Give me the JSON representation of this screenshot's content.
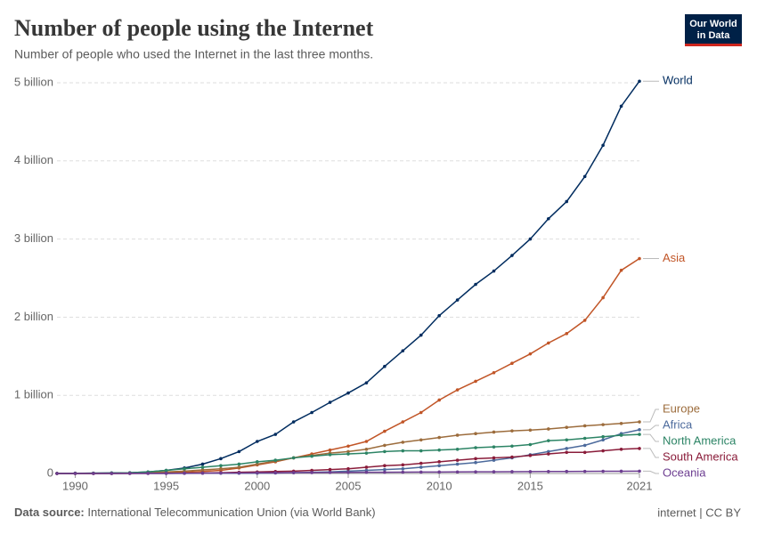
{
  "logo": [
    "Our World",
    "in Data"
  ],
  "chart_data": {
    "type": "line",
    "title": "Number of people using the Internet",
    "subtitle": "Number of people who used the Internet in the last three months.",
    "source_label": "Data source:",
    "source": "International Telecommunication Union (via World Bank)",
    "license": "internet | CC BY",
    "x": [
      1989,
      1990,
      1991,
      1992,
      1993,
      1994,
      1995,
      1996,
      1997,
      1998,
      1999,
      2000,
      2001,
      2002,
      2003,
      2004,
      2005,
      2006,
      2007,
      2008,
      2009,
      2010,
      2011,
      2012,
      2013,
      2014,
      2015,
      2016,
      2017,
      2018,
      2019,
      2020,
      2021
    ],
    "xlim": [
      1989,
      2021
    ],
    "xticks": [
      1990,
      1995,
      2000,
      2005,
      2010,
      2015,
      2021
    ],
    "ylim": [
      0,
      5
    ],
    "yticks": [
      0,
      {
        "value": 1,
        "label": "1 billion"
      },
      {
        "value": 2,
        "label": "2 billion"
      },
      {
        "value": 3,
        "label": "3 billion"
      },
      {
        "value": 4,
        "label": "4 billion"
      },
      {
        "value": 5,
        "label": "5 billion"
      }
    ],
    "grid": true,
    "series": [
      {
        "name": "World",
        "color": "#002c5f",
        "values": [
          0.001,
          0.003,
          0.004,
          0.007,
          0.01,
          0.02,
          0.04,
          0.07,
          0.12,
          0.19,
          0.28,
          0.41,
          0.5,
          0.66,
          0.78,
          0.91,
          1.03,
          1.16,
          1.37,
          1.57,
          1.77,
          2.02,
          2.22,
          2.42,
          2.59,
          2.79,
          3.0,
          3.26,
          3.48,
          3.8,
          4.2,
          4.7,
          5.02
        ]
      },
      {
        "name": "Asia",
        "color": "#c15527",
        "values": [
          0,
          0,
          0,
          0.001,
          0.002,
          0.004,
          0.008,
          0.015,
          0.025,
          0.04,
          0.07,
          0.11,
          0.15,
          0.2,
          0.25,
          0.3,
          0.35,
          0.41,
          0.54,
          0.66,
          0.78,
          0.94,
          1.07,
          1.18,
          1.29,
          1.41,
          1.53,
          1.67,
          1.79,
          1.96,
          2.25,
          2.6,
          2.75
        ]
      },
      {
        "name": "Europe",
        "color": "#9c6c3c",
        "values": [
          0,
          0.001,
          0.002,
          0.003,
          0.005,
          0.01,
          0.02,
          0.03,
          0.045,
          0.06,
          0.08,
          0.12,
          0.16,
          0.2,
          0.23,
          0.26,
          0.28,
          0.31,
          0.36,
          0.4,
          0.43,
          0.46,
          0.49,
          0.51,
          0.53,
          0.545,
          0.555,
          0.57,
          0.59,
          0.61,
          0.625,
          0.64,
          0.66
        ]
      },
      {
        "name": "Africa",
        "color": "#4c6a9c",
        "values": [
          0,
          0.001,
          0.001,
          0.001,
          0.001,
          0.002,
          0.002,
          0.002,
          0.003,
          0.003,
          0.003,
          0.004,
          0.006,
          0.01,
          0.015,
          0.02,
          0.03,
          0.04,
          0.05,
          0.06,
          0.08,
          0.1,
          0.12,
          0.14,
          0.17,
          0.2,
          0.24,
          0.28,
          0.32,
          0.36,
          0.43,
          0.51,
          0.56
        ]
      },
      {
        "name": "North America",
        "color": "#2c8465",
        "values": [
          0.001,
          0.002,
          0.004,
          0.006,
          0.01,
          0.02,
          0.04,
          0.06,
          0.08,
          0.1,
          0.12,
          0.15,
          0.17,
          0.2,
          0.22,
          0.24,
          0.25,
          0.26,
          0.28,
          0.29,
          0.29,
          0.3,
          0.31,
          0.33,
          0.34,
          0.35,
          0.37,
          0.42,
          0.43,
          0.45,
          0.47,
          0.49,
          0.5
        ]
      },
      {
        "name": "South America",
        "color": "#8a1c3a",
        "values": [
          0,
          0,
          0,
          0,
          0.001,
          0.001,
          0.002,
          0.004,
          0.006,
          0.01,
          0.015,
          0.02,
          0.025,
          0.03,
          0.04,
          0.05,
          0.06,
          0.08,
          0.1,
          0.11,
          0.13,
          0.15,
          0.17,
          0.19,
          0.2,
          0.21,
          0.23,
          0.25,
          0.27,
          0.27,
          0.29,
          0.31,
          0.32
        ]
      },
      {
        "name": "Oceania",
        "color": "#6d3e91",
        "values": [
          0,
          0,
          0,
          0,
          0.001,
          0.001,
          0.002,
          0.003,
          0.004,
          0.005,
          0.006,
          0.008,
          0.009,
          0.011,
          0.012,
          0.013,
          0.014,
          0.015,
          0.016,
          0.017,
          0.018,
          0.019,
          0.02,
          0.021,
          0.022,
          0.023,
          0.024,
          0.025,
          0.026,
          0.027,
          0.028,
          0.029,
          0.03
        ]
      }
    ]
  }
}
